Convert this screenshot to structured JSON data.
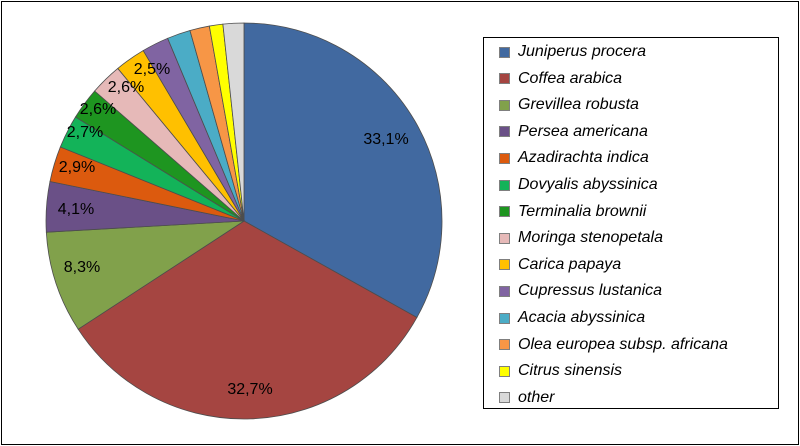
{
  "chart_data": {
    "type": "pie",
    "title": "",
    "legend_position": "right",
    "slices": [
      {
        "name": "Juniperus procera",
        "value": 33.1,
        "label": "33,1%",
        "color": "#4169A0"
      },
      {
        "name": "Coffea arabica",
        "value": 32.7,
        "label": "32,7%",
        "color": "#A54541"
      },
      {
        "name": "Grevillea robusta",
        "value": 8.3,
        "label": "8,3%",
        "color": "#81A14B"
      },
      {
        "name": "Persea americana",
        "value": 4.1,
        "label": "4,1%",
        "color": "#6A5087"
      },
      {
        "name": "Azadirachta indica",
        "value": 2.9,
        "label": "2,9%",
        "color": "#DC5A0E"
      },
      {
        "name": "Dovyalis abyssinica",
        "value": 2.7,
        "label": "2,7%",
        "color": "#13B359"
      },
      {
        "name": "Terminalia brownii",
        "value": 2.6,
        "label": "2,6%",
        "color": "#1E9520"
      },
      {
        "name": "Moringa stenopetala",
        "value": 2.6,
        "label": "2,6%",
        "color": "#E6B9B8"
      },
      {
        "name": "Carica papaya",
        "value": 2.5,
        "label": "2,5%",
        "color": "#FFC000"
      },
      {
        "name": "Cupressus lustanica",
        "value": 2.2,
        "label": "",
        "color": "#8064A2"
      },
      {
        "name": "Acacia abyssinica",
        "value": 1.9,
        "label": "",
        "color": "#4BACC6"
      },
      {
        "name": "Olea europea subsp. africana",
        "value": 1.6,
        "label": "",
        "color": "#F79646"
      },
      {
        "name": "Citrus sinensis",
        "value": 1.1,
        "label": "",
        "color": "#FFFF00"
      },
      {
        "name": "other",
        "value": 1.7,
        "label": "",
        "color": "#D9D9D9"
      }
    ]
  }
}
